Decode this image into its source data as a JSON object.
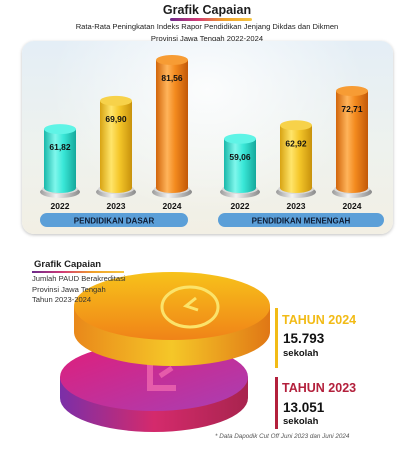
{
  "chart1": {
    "title": "Grafik Capaian",
    "subtitle_line1": "Rata-Rata Peningkatan Indeks Rapor Pendidikan Jenjang Dikdas dan Dikmen",
    "subtitle_line2": "Provinsi Jawa Tengah 2022-2024",
    "colors": {
      "2022": "#35e6d6",
      "2023": "#f2c428",
      "2024": "#f08a1c",
      "group_pill": "#5b9fd8"
    }
  },
  "chart_data": {
    "type": "bar",
    "title": "Rata-Rata Peningkatan Indeks Rapor Pendidikan Jenjang Dikdas dan Dikmen",
    "subtitle": "Provinsi Jawa Tengah 2022-2024",
    "groups": [
      "PENDIDIKAN DASAR",
      "PENDIDIKAN MENENGAH"
    ],
    "categories": [
      "2022",
      "2023",
      "2024"
    ],
    "series": [
      {
        "name": "PENDIDIKAN DASAR",
        "values": [
          61.82,
          69.9,
          81.56
        ],
        "labels": [
          "61,82",
          "69,90",
          "81,56"
        ]
      },
      {
        "name": "PENDIDIKAN MENENGAH",
        "values": [
          59.06,
          62.92,
          72.71
        ],
        "labels": [
          "59,06",
          "62,92",
          "72,71"
        ]
      }
    ],
    "grid": false
  },
  "chart2": {
    "title": "Grafik Capaian",
    "subtitle": [
      "Jumlah PAUD Berakreditasi",
      "Provinsi Jawa Tengah",
      "Tahun 2023-2024"
    ],
    "items": [
      {
        "year": "TAHUN 2024",
        "value": "15.793",
        "unit": "sekolah",
        "color": "#f2bb16"
      },
      {
        "year": "TAHUN 2023",
        "value": "13.051",
        "unit": "sekolah",
        "color": "#b3203c"
      }
    ],
    "footnote": "* Data Dapodik Cut Off Juni 2023 dan Juni 2024"
  }
}
